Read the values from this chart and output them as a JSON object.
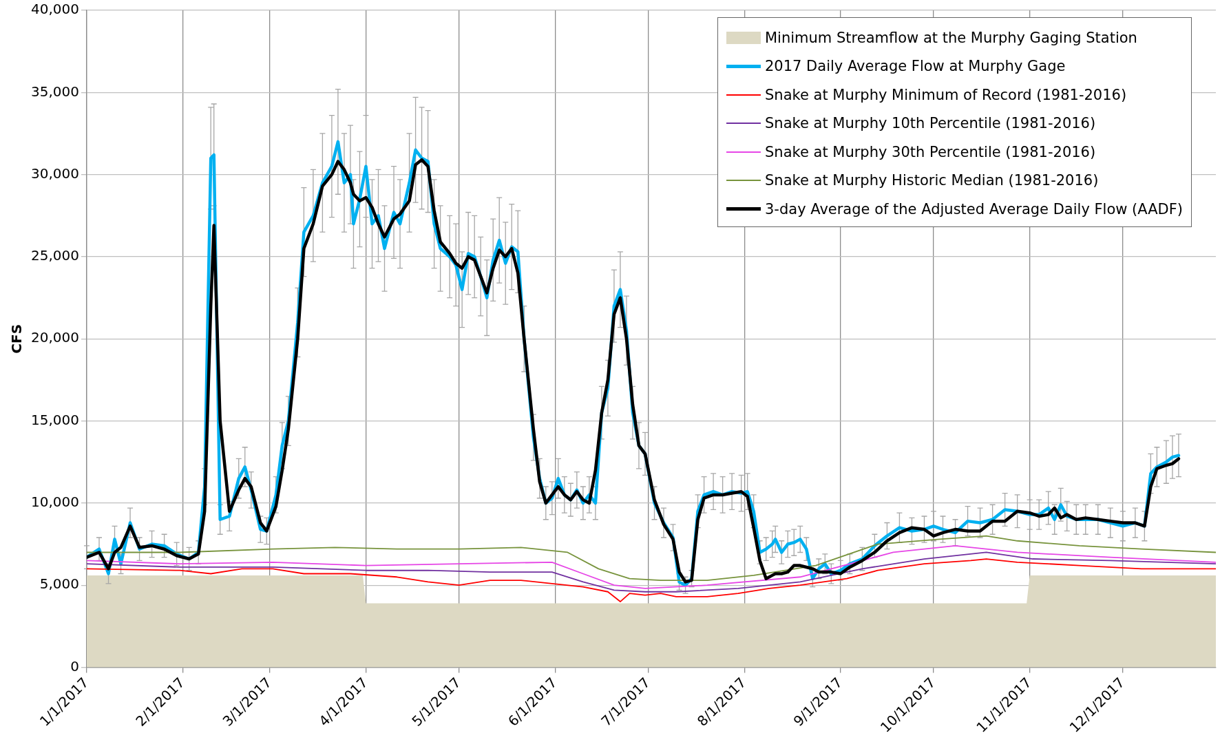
{
  "chart_data": {
    "type": "line",
    "ylabel": "CFS",
    "legend": "top right",
    "grid": true,
    "marker": "none",
    "xlim": [
      "2017-01-01",
      "2017-12-31"
    ],
    "xticks": [
      {
        "value": "2017-01-01",
        "label": "1/1/2017"
      },
      {
        "value": "2017-02-01",
        "label": "2/1/2017"
      },
      {
        "value": "2017-03-01",
        "label": "3/1/2017"
      },
      {
        "value": "2017-04-01",
        "label": "4/1/2017"
      },
      {
        "value": "2017-05-01",
        "label": "5/1/2017"
      },
      {
        "value": "2017-06-01",
        "label": "6/1/2017"
      },
      {
        "value": "2017-07-01",
        "label": "7/1/2017"
      },
      {
        "value": "2017-08-01",
        "label": "8/1/2017"
      },
      {
        "value": "2017-09-01",
        "label": "9/1/2017"
      },
      {
        "value": "2017-10-01",
        "label": "10/1/2017"
      },
      {
        "value": "2017-11-01",
        "label": "11/1/2017"
      },
      {
        "value": "2017-12-01",
        "label": "12/1/2017"
      }
    ],
    "ylim": [
      0,
      40000
    ],
    "yticks": [
      {
        "value": 0,
        "label": "0"
      },
      {
        "value": 5000,
        "label": "5,000"
      },
      {
        "value": 10000,
        "label": "10,000"
      },
      {
        "value": 15000,
        "label": "15,000"
      },
      {
        "value": 20000,
        "label": "20,000"
      },
      {
        "value": 25000,
        "label": "25,000"
      },
      {
        "value": 30000,
        "label": "30,000"
      },
      {
        "value": 35000,
        "label": "35,000"
      },
      {
        "value": 40000,
        "label": "40,000"
      }
    ],
    "x": [
      "2017-01-01",
      "2017-01-05",
      "2017-01-08",
      "2017-01-10",
      "2017-01-12",
      "2017-01-15",
      "2017-01-18",
      "2017-01-22",
      "2017-01-26",
      "2017-01-30",
      "2017-02-03",
      "2017-02-06",
      "2017-02-08",
      "2017-02-10",
      "2017-02-11",
      "2017-02-13",
      "2017-02-16",
      "2017-02-19",
      "2017-02-21",
      "2017-02-23",
      "2017-02-26",
      "2017-02-28",
      "2017-03-03",
      "2017-03-05",
      "2017-03-07",
      "2017-03-10",
      "2017-03-12",
      "2017-03-15",
      "2017-03-18",
      "2017-03-21",
      "2017-03-23",
      "2017-03-25",
      "2017-03-27",
      "2017-03-28",
      "2017-03-30",
      "2017-04-01",
      "2017-04-03",
      "2017-04-05",
      "2017-04-07",
      "2017-04-10",
      "2017-04-12",
      "2017-04-15",
      "2017-04-17",
      "2017-04-19",
      "2017-04-21",
      "2017-04-23",
      "2017-04-25",
      "2017-04-28",
      "2017-04-30",
      "2017-05-02",
      "2017-05-04",
      "2017-05-06",
      "2017-05-08",
      "2017-05-10",
      "2017-05-12",
      "2017-05-14",
      "2017-05-16",
      "2017-05-18",
      "2017-05-20",
      "2017-05-22",
      "2017-05-25",
      "2017-05-27",
      "2017-05-29",
      "2017-05-31",
      "2017-06-02",
      "2017-06-04",
      "2017-06-06",
      "2017-06-08",
      "2017-06-10",
      "2017-06-12",
      "2017-06-14",
      "2017-06-16",
      "2017-06-18",
      "2017-06-20",
      "2017-06-22",
      "2017-06-24",
      "2017-06-26",
      "2017-06-28",
      "2017-06-30",
      "2017-07-03",
      "2017-07-06",
      "2017-07-09",
      "2017-07-11",
      "2017-07-13",
      "2017-07-15",
      "2017-07-17",
      "2017-07-19",
      "2017-07-22",
      "2017-07-25",
      "2017-07-28",
      "2017-07-31",
      "2017-08-02",
      "2017-08-04",
      "2017-08-06",
      "2017-08-08",
      "2017-08-10",
      "2017-08-11",
      "2017-08-13",
      "2017-08-15",
      "2017-08-17",
      "2017-08-19",
      "2017-08-21",
      "2017-08-23",
      "2017-08-25",
      "2017-08-27",
      "2017-08-29",
      "2017-09-01",
      "2017-09-04",
      "2017-09-08",
      "2017-09-12",
      "2017-09-16",
      "2017-09-20",
      "2017-09-24",
      "2017-09-28",
      "2017-10-01",
      "2017-10-04",
      "2017-10-08",
      "2017-10-12",
      "2017-10-16",
      "2017-10-20",
      "2017-10-24",
      "2017-10-28",
      "2017-11-01",
      "2017-11-04",
      "2017-11-07",
      "2017-11-09",
      "2017-11-11",
      "2017-11-13",
      "2017-11-16",
      "2017-11-19",
      "2017-11-23",
      "2017-11-27",
      "2017-12-01",
      "2017-12-05",
      "2017-12-08",
      "2017-12-10",
      "2017-12-12",
      "2017-12-15",
      "2017-12-17",
      "2017-12-19"
    ],
    "series": [
      {
        "name": "Minimum Streamflow at the Murphy Gaging Station",
        "type": "area",
        "color": "#ddd9c3",
        "x": [
          "2017-01-01",
          "2017-03-31",
          "2017-04-01",
          "2017-10-31",
          "2017-11-01",
          "2017-12-31"
        ],
        "values": [
          5600,
          5600,
          3900,
          3900,
          5600,
          5600
        ]
      },
      {
        "name": "2017 Daily Average Flow at Murphy Gage",
        "color": "#00b0f0",
        "values": [
          6700,
          7200,
          5700,
          7800,
          6300,
          8800,
          7200,
          7500,
          7400,
          6900,
          6600,
          7000,
          11000,
          31000,
          31200,
          9000,
          9200,
          11500,
          12200,
          10800,
          8400,
          8300,
          10500,
          13500,
          15000,
          21000,
          26500,
          27500,
          29500,
          30500,
          32000,
          29500,
          30000,
          27000,
          28500,
          30500,
          27000,
          27500,
          25500,
          27700,
          27000,
          29500,
          31500,
          31000,
          30800,
          27000,
          25500,
          25000,
          24500,
          23000,
          25200,
          25000,
          23800,
          22500,
          24800,
          26000,
          24600,
          25600,
          25300,
          20000,
          14000,
          11500,
          10000,
          10300,
          11500,
          10500,
          10200,
          10800,
          10000,
          10500,
          10000,
          15500,
          17000,
          22000,
          23000,
          20500,
          15500,
          13500,
          13000,
          10000,
          8800,
          7900,
          5200,
          5000,
          5400,
          9500,
          10500,
          10700,
          10500,
          10700,
          10600,
          10700,
          9500,
          7000,
          7200,
          7500,
          7800,
          7000,
          7500,
          7600,
          7800,
          7200,
          5400,
          6000,
          6300,
          5700,
          5900,
          6300,
          6600,
          7400,
          8000,
          8500,
          8300,
          8400,
          8600,
          8400,
          8200,
          8900,
          8800,
          9000,
          9600,
          9500,
          9300,
          9300,
          9700,
          9000,
          9900,
          9200,
          9000,
          9000,
          9000,
          8800,
          8600,
          8800,
          8600,
          11800,
          12200,
          12500,
          12800,
          12900
        ],
        "errors": [
          700,
          700,
          600,
          800,
          600,
          900,
          700,
          800,
          700,
          700,
          700,
          700,
          1100,
          3100,
          3100,
          900,
          900,
          1200,
          1200,
          1100,
          800,
          800,
          1100,
          1400,
          1500,
          2100,
          2700,
          2800,
          3000,
          3100,
          3200,
          3000,
          3000,
          2700,
          2900,
          3100,
          2700,
          2800,
          2600,
          2800,
          2700,
          3000,
          3200,
          3100,
          3100,
          2700,
          2600,
          2500,
          2500,
          2300,
          2500,
          2500,
          2400,
          2300,
          2500,
          2600,
          2500,
          2600,
          2500,
          2000,
          1400,
          1200,
          1000,
          1000,
          1200,
          1100,
          1000,
          1100,
          1000,
          1100,
          1000,
          1600,
          1700,
          2200,
          2300,
          2100,
          1600,
          1400,
          1300,
          1000,
          900,
          800,
          500,
          500,
          500,
          1000,
          1100,
          1100,
          1100,
          1100,
          1100,
          1100,
          1000,
          700,
          700,
          800,
          800,
          700,
          800,
          800,
          800,
          700,
          500,
          600,
          600,
          600,
          600,
          600,
          700,
          700,
          800,
          900,
          800,
          800,
          900,
          800,
          800,
          900,
          900,
          900,
          1000,
          1000,
          900,
          900,
          1000,
          900,
          1000,
          900,
          900,
          900,
          900,
          900,
          900,
          900,
          900,
          1200,
          1200,
          1300,
          1300,
          1300
        ]
      },
      {
        "name": "Snake at Murphy Minimum of Record (1981-2016)",
        "color": "#ff0000",
        "x": [
          "2017-01-01",
          "2017-01-31",
          "2017-02-10",
          "2017-02-20",
          "2017-03-02",
          "2017-03-12",
          "2017-03-27",
          "2017-04-11",
          "2017-04-21",
          "2017-05-01",
          "2017-05-11",
          "2017-05-21",
          "2017-05-31",
          "2017-06-10",
          "2017-06-18",
          "2017-06-22",
          "2017-06-25",
          "2017-06-30",
          "2017-07-05",
          "2017-07-10",
          "2017-07-20",
          "2017-07-30",
          "2017-08-09",
          "2017-08-19",
          "2017-09-03",
          "2017-09-13",
          "2017-09-28",
          "2017-10-13",
          "2017-10-18",
          "2017-10-28",
          "2017-11-17",
          "2017-12-07",
          "2017-12-31"
        ],
        "values": [
          6000,
          5900,
          5700,
          6000,
          6000,
          5700,
          5700,
          5500,
          5200,
          5000,
          5300,
          5300,
          5100,
          4900,
          4600,
          4000,
          4500,
          4400,
          4500,
          4300,
          4300,
          4500,
          4800,
          5000,
          5400,
          5900,
          6300,
          6500,
          6600,
          6400,
          6200,
          6000,
          6000
        ]
      },
      {
        "name": "Snake at Murphy 10th Percentile (1981-2016)",
        "color": "#7030a0",
        "x": [
          "2017-01-01",
          "2017-01-31",
          "2017-03-02",
          "2017-04-01",
          "2017-04-21",
          "2017-05-11",
          "2017-05-31",
          "2017-06-10",
          "2017-06-20",
          "2017-06-30",
          "2017-07-10",
          "2017-07-30",
          "2017-08-19",
          "2017-09-08",
          "2017-09-28",
          "2017-10-18",
          "2017-11-02",
          "2017-11-27",
          "2017-12-31"
        ],
        "values": [
          6300,
          6100,
          6100,
          5900,
          5900,
          5800,
          5800,
          5200,
          4700,
          4600,
          4600,
          4800,
          5200,
          6000,
          6600,
          7000,
          6600,
          6500,
          6300
        ]
      },
      {
        "name": "Snake at Murphy 30th Percentile (1981-2016)",
        "color": "#e646e6",
        "x": [
          "2017-01-01",
          "2017-01-31",
          "2017-03-02",
          "2017-04-01",
          "2017-05-01",
          "2017-05-31",
          "2017-06-10",
          "2017-06-20",
          "2017-06-30",
          "2017-07-20",
          "2017-08-19",
          "2017-09-18",
          "2017-10-08",
          "2017-10-28",
          "2017-11-27",
          "2017-12-31"
        ],
        "values": [
          6500,
          6300,
          6400,
          6200,
          6300,
          6400,
          5700,
          5000,
          4800,
          5000,
          5500,
          7000,
          7400,
          7000,
          6700,
          6400
        ]
      },
      {
        "name": "Snake at Murphy Historic Median (1981-2016)",
        "color": "#77933c",
        "x": [
          "2017-01-01",
          "2017-01-31",
          "2017-03-02",
          "2017-03-22",
          "2017-04-11",
          "2017-05-01",
          "2017-05-21",
          "2017-06-05",
          "2017-06-15",
          "2017-06-25",
          "2017-07-05",
          "2017-07-20",
          "2017-08-04",
          "2017-08-24",
          "2017-09-13",
          "2017-10-03",
          "2017-10-18",
          "2017-10-28",
          "2017-11-17",
          "2017-12-07",
          "2017-12-31"
        ],
        "values": [
          7000,
          7000,
          7200,
          7300,
          7200,
          7200,
          7300,
          7000,
          6000,
          5400,
          5300,
          5300,
          5600,
          6200,
          7500,
          7800,
          8000,
          7700,
          7400,
          7200,
          7000
        ]
      },
      {
        "name": "3-day Average of the Adjusted Average Daily Flow (AADF)",
        "color": "#000000",
        "values": [
          6700,
          7000,
          6000,
          7000,
          7300,
          8600,
          7300,
          7400,
          7200,
          6800,
          6600,
          6900,
          9500,
          22000,
          26900,
          15000,
          9500,
          10800,
          11500,
          11000,
          8800,
          8300,
          9800,
          12000,
          14500,
          20000,
          25500,
          27000,
          29300,
          30000,
          30800,
          30300,
          29500,
          28800,
          28400,
          28600,
          28000,
          27000,
          26200,
          27300,
          27600,
          28400,
          30600,
          30900,
          30500,
          27800,
          25900,
          25200,
          24600,
          24300,
          25000,
          24800,
          23800,
          22800,
          24300,
          25400,
          25000,
          25500,
          24000,
          20000,
          14500,
          11300,
          10000,
          10500,
          11000,
          10500,
          10200,
          10700,
          10200,
          10000,
          12000,
          15500,
          17500,
          21500,
          22500,
          20000,
          16000,
          13500,
          13000,
          10200,
          8700,
          7800,
          5800,
          5200,
          5300,
          9000,
          10300,
          10500,
          10500,
          10600,
          10700,
          10400,
          8500,
          6500,
          5400,
          5600,
          5700,
          5700,
          5800,
          6200,
          6200,
          6100,
          6000,
          5800,
          5800,
          5800,
          5700,
          6100,
          6500,
          7000,
          7700,
          8200,
          8500,
          8400,
          8000,
          8200,
          8400,
          8300,
          8300,
          8900,
          8900,
          9500,
          9400,
          9200,
          9300,
          9700,
          9100,
          9300,
          9000,
          9100,
          9000,
          8900,
          8800,
          8800,
          8600,
          11000,
          12100,
          12300,
          12400,
          12700
        ]
      }
    ]
  }
}
